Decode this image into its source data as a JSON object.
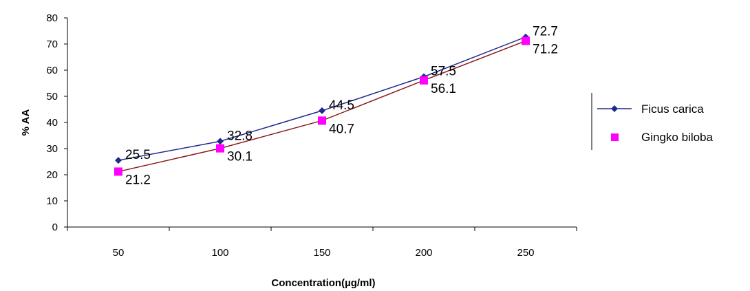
{
  "chart_data": {
    "type": "line",
    "title": "",
    "xlabel": "Concentration(µg/ml)",
    "ylabel": "% AA",
    "categories": [
      "50",
      "100",
      "150",
      "200",
      "250"
    ],
    "ylim": [
      0,
      80
    ],
    "yticks": [
      0,
      10,
      20,
      30,
      40,
      50,
      60,
      70,
      80
    ],
    "grid": false,
    "legend_position": "right",
    "series": [
      {
        "name": "Ficus carica",
        "color": "#1f2a8c",
        "marker": "diamond",
        "values": [
          25.5,
          32.8,
          44.5,
          57.5,
          72.7
        ],
        "labels": [
          "25.5",
          "32.8",
          "44.5",
          "57.5",
          "72.7"
        ]
      },
      {
        "name": "Gingko biloba",
        "color": "#ff00ff",
        "line_color": "#8b1a1a",
        "marker": "square",
        "values": [
          21.2,
          30.1,
          40.7,
          56.1,
          71.2
        ],
        "labels": [
          "21.2",
          "30.1",
          "40.7",
          "56.1",
          "71.2"
        ]
      }
    ]
  }
}
